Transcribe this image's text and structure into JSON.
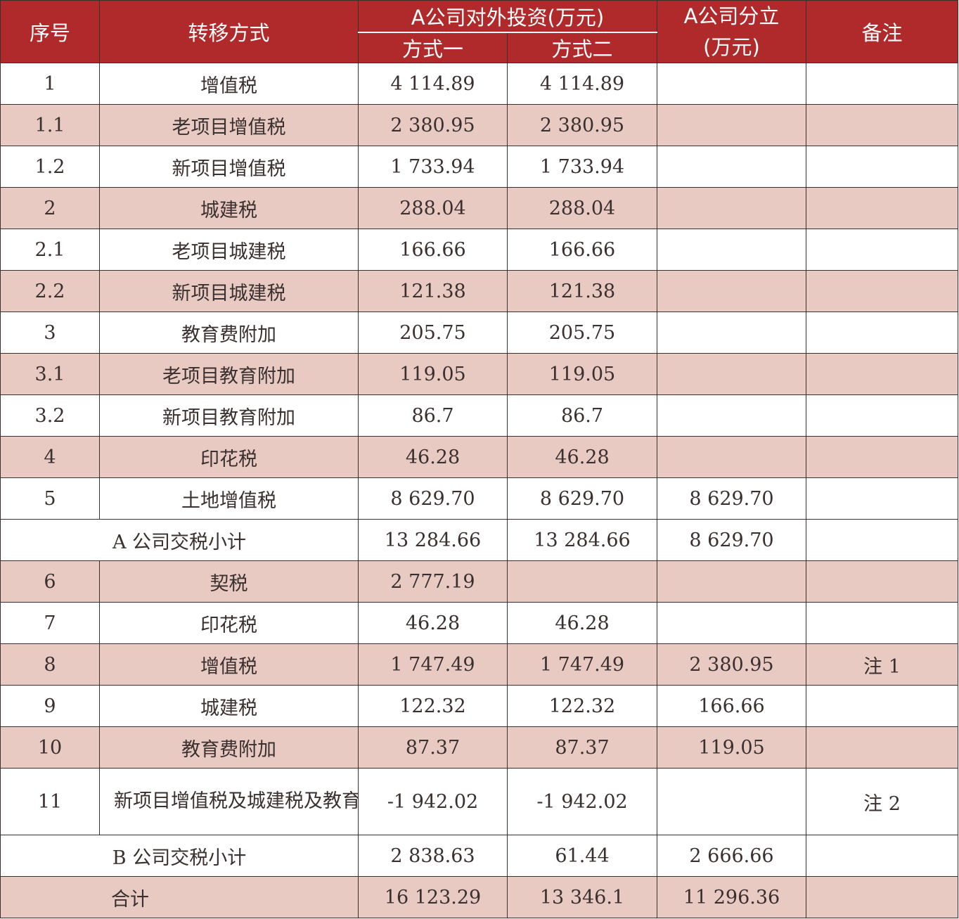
{
  "header": {
    "seq": "序号",
    "method": "转移方式",
    "invest_group": "A公司对外投资(万元)",
    "option1": "方式一",
    "option2": "方式二",
    "split": "A公司分立\n(万元)",
    "split_line1": "A公司分立",
    "split_line2": "(万元)",
    "remark": "备注"
  },
  "rows": [
    {
      "seq": "1",
      "name": "增值税",
      "m1": "4 114.89",
      "m2": "4 114.89",
      "split": "",
      "remark": ""
    },
    {
      "seq": "1.1",
      "name": "老项目增值税",
      "m1": "2 380.95",
      "m2": "2 380.95",
      "split": "",
      "remark": ""
    },
    {
      "seq": "1.2",
      "name": "新项目增值税",
      "m1": "1 733.94",
      "m2": "1 733.94",
      "split": "",
      "remark": ""
    },
    {
      "seq": "2",
      "name": "城建税",
      "m1": "288.04",
      "m2": "288.04",
      "split": "",
      "remark": ""
    },
    {
      "seq": "2.1",
      "name": "老项目城建税",
      "m1": "166.66",
      "m2": "166.66",
      "split": "",
      "remark": ""
    },
    {
      "seq": "2.2",
      "name": "新项目城建税",
      "m1": "121.38",
      "m2": "121.38",
      "split": "",
      "remark": ""
    },
    {
      "seq": "3",
      "name": "教育费附加",
      "m1": "205.75",
      "m2": "205.75",
      "split": "",
      "remark": ""
    },
    {
      "seq": "3.1",
      "name": "老项目教育附加",
      "m1": "119.05",
      "m2": "119.05",
      "split": "",
      "remark": ""
    },
    {
      "seq": "3.2",
      "name": "新项目教育附加",
      "m1": "86.7",
      "m2": "86.7",
      "split": "",
      "remark": ""
    },
    {
      "seq": "4",
      "name": "印花税",
      "m1": "46.28",
      "m2": "46.28",
      "split": "",
      "remark": ""
    },
    {
      "seq": "5",
      "name": "土地增值税",
      "m1": "8 629.70",
      "m2": "8 629.70",
      "split": "8 629.70",
      "remark": ""
    }
  ],
  "subtotal_a": {
    "label": "A 公司交税小计",
    "m1": "13 284.66",
    "m2": "13 284.66",
    "split": "8 629.70",
    "remark": ""
  },
  "rows_b": [
    {
      "seq": "6",
      "name": "契税",
      "m1": "2 777.19",
      "m2": "",
      "split": "",
      "remark": ""
    },
    {
      "seq": "7",
      "name": "印花税",
      "m1": "46.28",
      "m2": "46.28",
      "split": "",
      "remark": ""
    },
    {
      "seq": "8",
      "name": "增值税",
      "m1": "1 747.49",
      "m2": "1 747.49",
      "split": "2 380.95",
      "remark": "注 1"
    },
    {
      "seq": "9",
      "name": "城建税",
      "m1": "122.32",
      "m2": "122.32",
      "split": "166.66",
      "remark": ""
    },
    {
      "seq": "10",
      "name": "教育费附加",
      "m1": "87.37",
      "m2": "87.37",
      "split": "119.05",
      "remark": ""
    },
    {
      "seq": "11",
      "name": "新项目增值税及城建税及教育费附加",
      "m1": "-1 942.02",
      "m2": "-1 942.02",
      "split": "",
      "remark": "注 2"
    }
  ],
  "subtotal_b": {
    "label": "B 公司交税小计",
    "m1": "2 838.63",
    "m2": "61.44",
    "split": "2 666.66",
    "remark": ""
  },
  "total": {
    "label": "合计",
    "m1": "16 123.29",
    "m2": "13 346.1",
    "split": "11 296.36",
    "remark": ""
  },
  "colors": {
    "header_bg": "#b02a2c",
    "shaded_row": "#e8cac2",
    "border": "#3b2f2f"
  }
}
